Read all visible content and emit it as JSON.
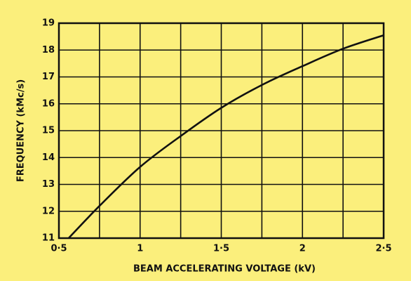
{
  "chart_data": {
    "type": "line",
    "x_label": "BEAM ACCELERATING VOLTAGE (kV)",
    "y_label": "FREQUENCY (kMc/s)",
    "x": [
      0.56,
      0.75,
      1.0,
      1.25,
      1.5,
      1.75,
      2.0,
      2.25,
      2.5
    ],
    "series": [
      {
        "color": "#111111",
        "values": [
          11.0,
          12.2,
          13.65,
          14.8,
          15.85,
          16.7,
          17.4,
          18.05,
          18.55
        ]
      }
    ],
    "xlim": [
      0.5,
      2.5
    ],
    "xticks": [
      {
        "value": 0.5,
        "label": "0·5"
      },
      1,
      {
        "value": 1.5,
        "label": "1·5"
      },
      2,
      {
        "value": 2.5,
        "label": "2·5"
      }
    ],
    "x_minor_ticks": [
      0.75,
      1.25,
      1.75,
      2.25
    ],
    "ylim": [
      11,
      19
    ],
    "yticks": [
      11,
      12,
      13,
      14,
      15,
      16,
      17,
      18,
      19
    ],
    "grid": true,
    "background": "#fbef7c"
  }
}
